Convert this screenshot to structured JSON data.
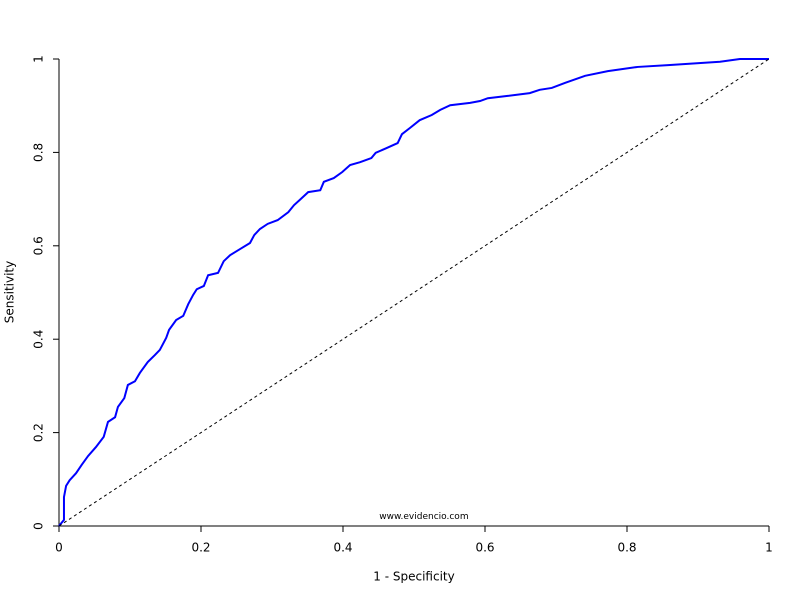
{
  "chart_data": {
    "type": "line",
    "xlabel": "1 - Specificity",
    "ylabel": "Sensitivity",
    "annotation": {
      "text": "www.evidencio.com",
      "x": 0.514,
      "y": 0.02
    },
    "xlim": [
      0,
      1
    ],
    "ylim": [
      0,
      1
    ],
    "xticks": [
      0,
      0.2,
      0.4,
      0.6,
      0.8,
      1
    ],
    "yticks": [
      0,
      0.2,
      0.4,
      0.6,
      0.8,
      1
    ],
    "series": [
      {
        "color": "#0000ff",
        "dashed": false,
        "x": [
          0,
          0.007,
          0.007,
          0.01,
          0.015,
          0.024,
          0.032,
          0.041,
          0.052,
          0.063,
          0.069,
          0.079,
          0.083,
          0.092,
          0.097,
          0.107,
          0.114,
          0.125,
          0.135,
          0.142,
          0.151,
          0.155,
          0.165,
          0.175,
          0.182,
          0.189,
          0.194,
          0.204,
          0.21,
          0.224,
          0.232,
          0.241,
          0.255,
          0.269,
          0.275,
          0.283,
          0.294,
          0.308,
          0.323,
          0.331,
          0.339,
          0.351,
          0.368,
          0.373,
          0.387,
          0.399,
          0.41,
          0.424,
          0.44,
          0.446,
          0.461,
          0.477,
          0.483,
          0.494,
          0.508,
          0.525,
          0.537,
          0.551,
          0.579,
          0.593,
          0.604,
          0.632,
          0.663,
          0.677,
          0.694,
          0.713,
          0.741,
          0.773,
          0.815,
          0.858,
          0.931,
          0.959,
          1
        ],
        "values": [
          0,
          0.013,
          0.062,
          0.086,
          0.098,
          0.113,
          0.131,
          0.15,
          0.169,
          0.191,
          0.223,
          0.233,
          0.255,
          0.274,
          0.302,
          0.31,
          0.328,
          0.351,
          0.366,
          0.377,
          0.403,
          0.42,
          0.441,
          0.45,
          0.475,
          0.495,
          0.507,
          0.514,
          0.537,
          0.542,
          0.567,
          0.58,
          0.593,
          0.606,
          0.623,
          0.636,
          0.647,
          0.655,
          0.672,
          0.687,
          0.698,
          0.715,
          0.719,
          0.737,
          0.745,
          0.758,
          0.773,
          0.779,
          0.788,
          0.799,
          0.809,
          0.82,
          0.839,
          0.852,
          0.869,
          0.88,
          0.891,
          0.901,
          0.906,
          0.91,
          0.916,
          0.921,
          0.927,
          0.934,
          0.938,
          0.949,
          0.964,
          0.974,
          0.983,
          0.987,
          0.994,
          1,
          1
        ]
      },
      {
        "color": "#000000",
        "dashed": true,
        "x": [
          0,
          1
        ],
        "values": [
          0,
          1
        ]
      }
    ]
  }
}
